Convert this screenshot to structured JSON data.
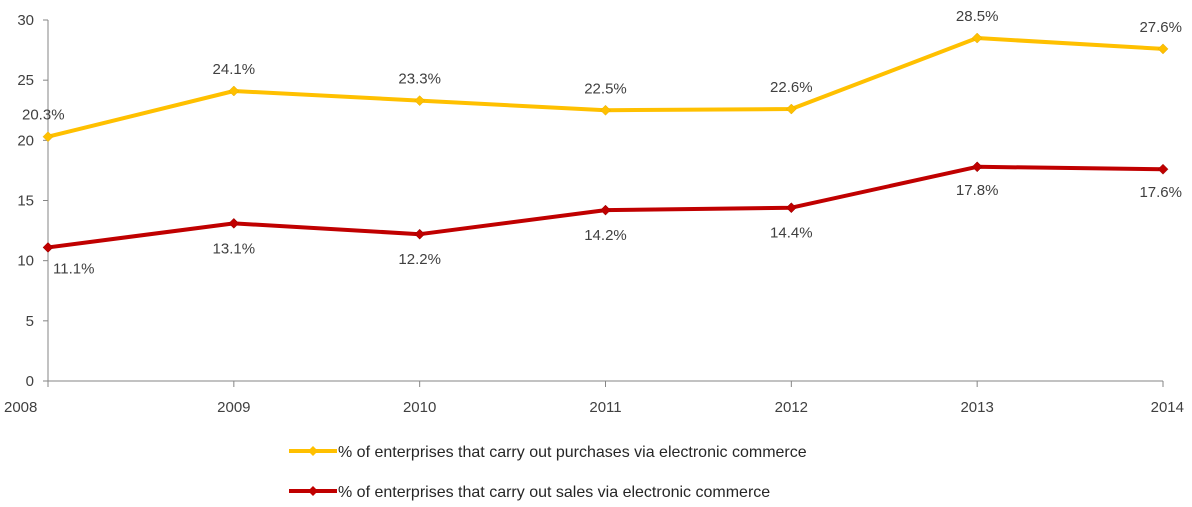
{
  "chart_data": {
    "type": "line",
    "x": [
      "2008",
      "2009",
      "2010",
      "2011",
      "2012",
      "2013",
      "2014"
    ],
    "ylim": [
      0,
      30
    ],
    "yticks": [
      0,
      5,
      10,
      15,
      20,
      25,
      30
    ],
    "grid": false,
    "legend_position": "bottom",
    "series": [
      {
        "name": "% of enterprises that carry out purchases via electronic commerce",
        "color": "#FFC000",
        "marker": "diamond",
        "values": [
          20.3,
          24.1,
          23.3,
          22.5,
          22.6,
          28.5,
          27.6
        ],
        "labels": [
          "20.3%",
          "24.1%",
          "23.3%",
          "22.5%",
          "22.6%",
          "28.5%",
          "27.6%"
        ]
      },
      {
        "name": "% of enterprises that carry out sales via electronic commerce",
        "color": "#C00000",
        "marker": "diamond",
        "values": [
          11.1,
          13.1,
          12.2,
          14.2,
          14.4,
          17.8,
          17.6
        ],
        "labels": [
          "11.1%",
          "13.1%",
          "12.2%",
          "14.2%",
          "14.4%",
          "17.8%",
          "17.6%"
        ]
      }
    ]
  }
}
